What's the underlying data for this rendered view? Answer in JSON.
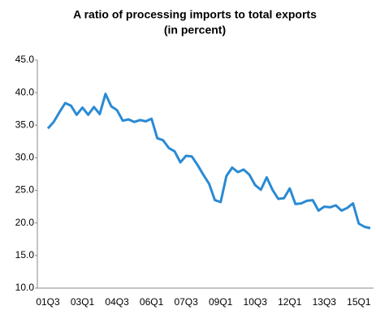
{
  "chart_data": {
    "type": "line",
    "title": "A ratio of processing imports to total exports",
    "subtitle": "(in percent)",
    "categories": [
      "01Q3",
      null,
      null,
      null,
      null,
      null,
      "03Q1",
      null,
      null,
      null,
      null,
      null,
      "04Q3",
      null,
      null,
      null,
      null,
      null,
      "06Q1",
      null,
      null,
      null,
      null,
      null,
      "07Q3",
      null,
      null,
      null,
      null,
      null,
      "09Q1",
      null,
      null,
      null,
      null,
      null,
      "10Q3",
      null,
      null,
      null,
      null,
      null,
      "12Q1",
      null,
      null,
      null,
      null,
      null,
      "13Q3",
      null,
      null,
      null,
      null,
      null,
      "15Q1",
      null,
      null
    ],
    "series": [
      {
        "color": "#2a8ad4",
        "values": [
          34.5,
          35.5,
          37.0,
          38.4,
          38.0,
          36.6,
          37.7,
          36.6,
          37.8,
          36.7,
          39.8,
          37.9,
          37.3,
          35.7,
          35.9,
          35.5,
          35.8,
          35.6,
          36.0,
          33.0,
          32.7,
          31.5,
          31.0,
          29.3,
          30.3,
          30.2,
          28.9,
          27.4,
          26.0,
          23.5,
          23.2,
          27.2,
          28.5,
          27.8,
          28.2,
          27.4,
          25.8,
          25.1,
          27.0,
          25.1,
          23.7,
          23.8,
          25.3,
          22.9,
          23.0,
          23.4,
          23.5,
          21.9,
          22.5,
          22.4,
          22.7,
          21.9,
          22.3,
          23.0,
          19.9,
          19.4,
          19.2
        ]
      }
    ],
    "ylim": [
      10,
      45
    ],
    "yticks": [
      {
        "value": 10,
        "label": "10.0"
      },
      {
        "value": 15,
        "label": "15.0"
      },
      {
        "value": 20,
        "label": "20.0"
      },
      {
        "value": 25,
        "label": "25.0"
      },
      {
        "value": 30,
        "label": "30.0"
      },
      {
        "value": 35,
        "label": "35.0"
      },
      {
        "value": 40,
        "label": "40.0"
      },
      {
        "value": 45,
        "label": "45.0"
      }
    ]
  }
}
